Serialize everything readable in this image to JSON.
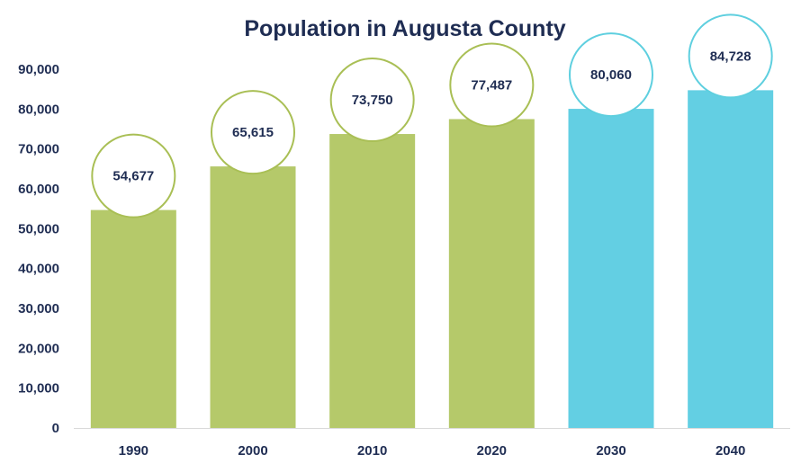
{
  "chart_data": {
    "type": "bar",
    "title": "Population in Augusta County",
    "xlabel": "",
    "ylabel": "",
    "categories": [
      "1990",
      "2000",
      "2010",
      "2020",
      "2030",
      "2040"
    ],
    "values": [
      54677,
      65615,
      73750,
      77487,
      80060,
      84728
    ],
    "data_labels": [
      "54,677",
      "65,615",
      "73,750",
      "77,487",
      "80,060",
      "84,728"
    ],
    "bar_colors": [
      "#b5c96a",
      "#b5c96a",
      "#b5c96a",
      "#b5c96a",
      "#63cfe3",
      "#63cfe3"
    ],
    "label_circle_border_colors": [
      "#a9bf55",
      "#a9bf55",
      "#a9bf55",
      "#a9bf55",
      "#5ecfdf",
      "#5ecfdf"
    ],
    "ylim": [
      0,
      90000
    ],
    "yticks": [
      0,
      10000,
      20000,
      30000,
      40000,
      50000,
      60000,
      70000,
      80000,
      90000
    ],
    "ytick_labels": [
      "0",
      "10,000",
      "20,000",
      "30,000",
      "40,000",
      "50,000",
      "60,000",
      "70,000",
      "80,000",
      "90,000"
    ],
    "grid": false,
    "legend": "none",
    "text_color": "#1f2d53"
  }
}
